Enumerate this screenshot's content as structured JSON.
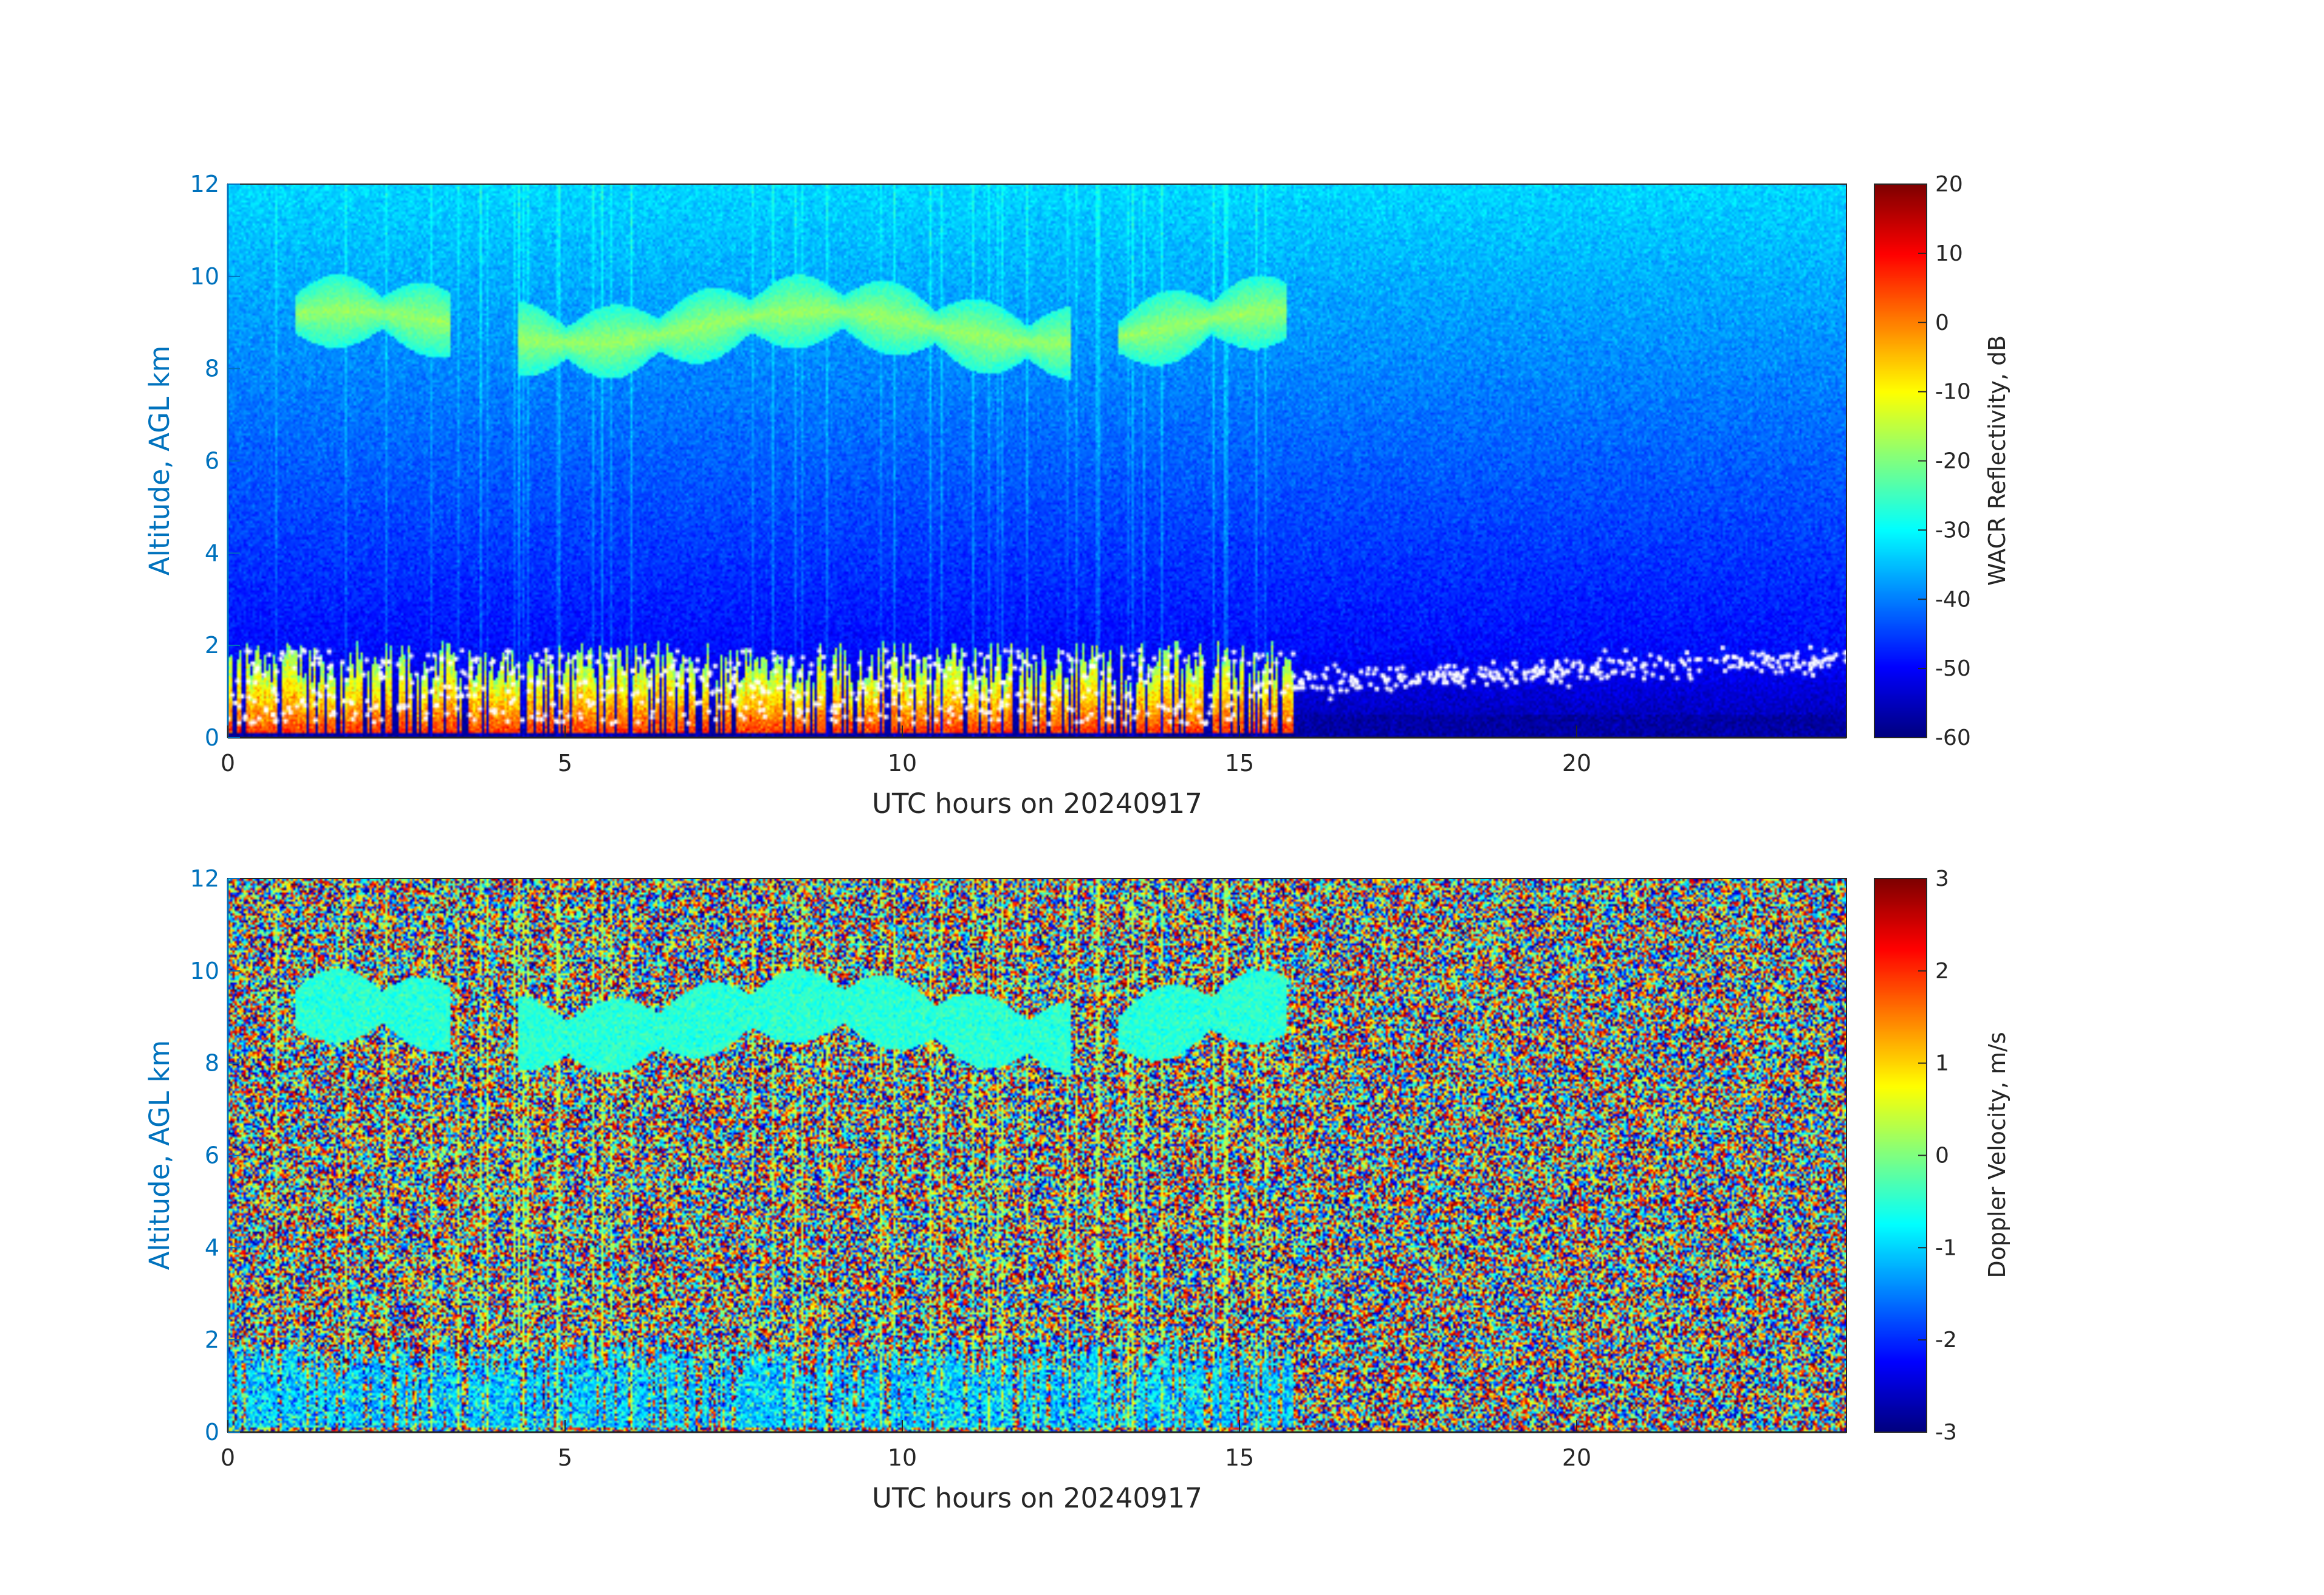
{
  "chart_data": [
    {
      "type": "heatmap",
      "title": "",
      "xlabel": "UTC hours on 20240917",
      "ylabel": "Altitude, AGL km",
      "colorbar_label": "WACR Reflectivity, dB",
      "colormap": "jet",
      "xlim": [
        0,
        24
      ],
      "ylim": [
        0,
        12
      ],
      "clim": [
        -60,
        20
      ],
      "x_ticks": [
        "0",
        "5",
        "10",
        "15",
        "20"
      ],
      "y_ticks": [
        "0",
        "2",
        "4",
        "6",
        "8",
        "10",
        "12"
      ],
      "colorbar_ticks": [
        "20",
        "10",
        "0",
        "-10",
        "-20",
        "-30",
        "-40",
        "-50",
        "-60"
      ],
      "features": {
        "background_gradient_dB": [
          {
            "altitude_km": 0.5,
            "value": -55
          },
          {
            "altitude_km": 6,
            "value": -42
          },
          {
            "altitude_km": 12,
            "value": -33
          }
        ],
        "cirrus_layer": {
          "altitude_km": [
            8.0,
            10.0
          ],
          "time_hours": [
            1.0,
            15.7
          ],
          "value_dB": -20
        },
        "boundary_layer_clouds": {
          "altitude_km": [
            0.1,
            2.0
          ],
          "time_hours": [
            0.0,
            15.8
          ],
          "value_dB": [
            -20,
            10
          ]
        },
        "cloud_base_markers": {
          "color": "#ffffff",
          "time_hours": [
            0.0,
            24.0
          ],
          "altitude_km": [
            0.3,
            2.3
          ]
        }
      }
    },
    {
      "type": "heatmap",
      "title": "",
      "xlabel": "UTC hours on 20240917",
      "ylabel": "Altitude, AGL km",
      "colorbar_label": "Doppler Velocity, m/s",
      "colormap": "jet",
      "xlim": [
        0,
        24
      ],
      "ylim": [
        0,
        12
      ],
      "clim": [
        -3,
        3
      ],
      "x_ticks": [
        "0",
        "5",
        "10",
        "15",
        "20"
      ],
      "y_ticks": [
        "0",
        "2",
        "4",
        "6",
        "8",
        "10",
        "12"
      ],
      "colorbar_ticks": [
        "3",
        "2",
        "1",
        "0",
        "-1",
        "-2",
        "-3"
      ],
      "features": {
        "noise_region": "random velocities across full range",
        "cirrus_layer": {
          "altitude_km": [
            8.0,
            10.0
          ],
          "time_hours": [
            1.0,
            15.7
          ],
          "value_ms": -0.5
        },
        "boundary_layer_clouds": {
          "altitude_km": [
            0.1,
            2.0
          ],
          "time_hours": [
            0.0,
            15.8
          ],
          "value_ms": [
            -2.5,
            0.5
          ]
        }
      }
    }
  ]
}
